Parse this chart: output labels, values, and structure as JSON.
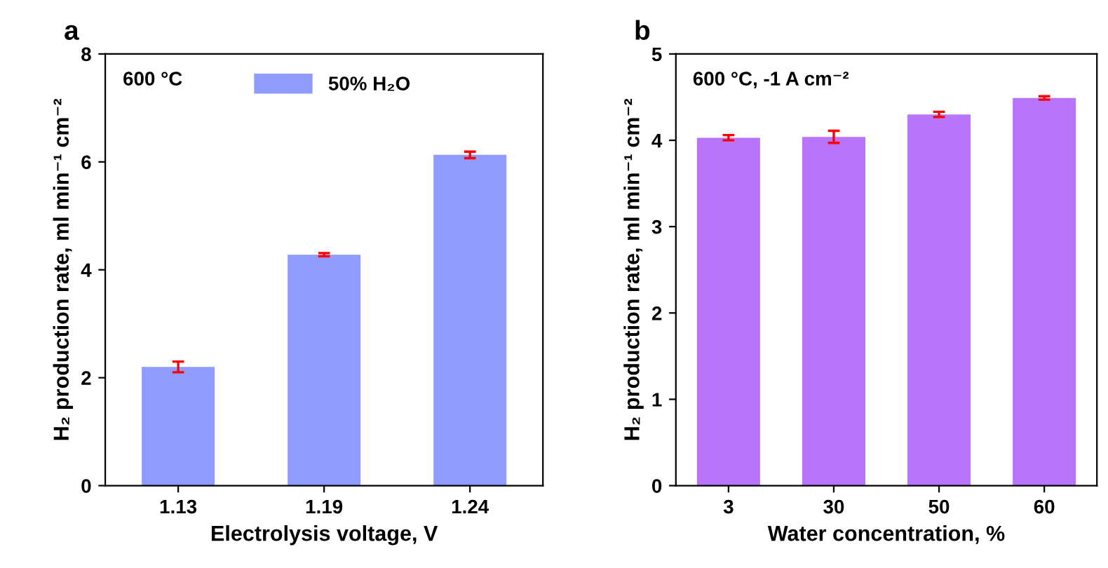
{
  "chart_data": [
    {
      "type": "bar",
      "xlabel": "Electrolysis voltage, V",
      "ylabel": "H₂ production rate, ml min⁻¹ cm⁻²",
      "annotations": [
        "a",
        "600 °C"
      ],
      "categories": [
        "1.13",
        "1.19",
        "1.24"
      ],
      "series": [
        {
          "name": "50% H₂O",
          "color": "#8f9cfd",
          "values": [
            2.2,
            4.28,
            6.13
          ],
          "errors": [
            0.1,
            0.03,
            0.06
          ]
        }
      ],
      "ylim": [
        0,
        8
      ],
      "yticks": [
        0,
        2,
        4,
        6,
        8
      ],
      "legend": "top",
      "grid": false
    },
    {
      "type": "bar",
      "xlabel": "Water concentration, %",
      "ylabel": "H₂ production rate, ml min⁻¹ cm⁻²",
      "annotations": [
        "b",
        "600 °C, -1 A cm⁻²"
      ],
      "categories": [
        "3",
        "30",
        "50",
        "60"
      ],
      "series": [
        {
          "color": "#b875fb",
          "values": [
            4.03,
            4.04,
            4.3,
            4.49
          ],
          "errors": [
            0.03,
            0.07,
            0.03,
            0.02
          ]
        }
      ],
      "ylim": [
        0,
        5
      ],
      "yticks": [
        0,
        1,
        2,
        3,
        4,
        5
      ],
      "grid": false
    }
  ]
}
